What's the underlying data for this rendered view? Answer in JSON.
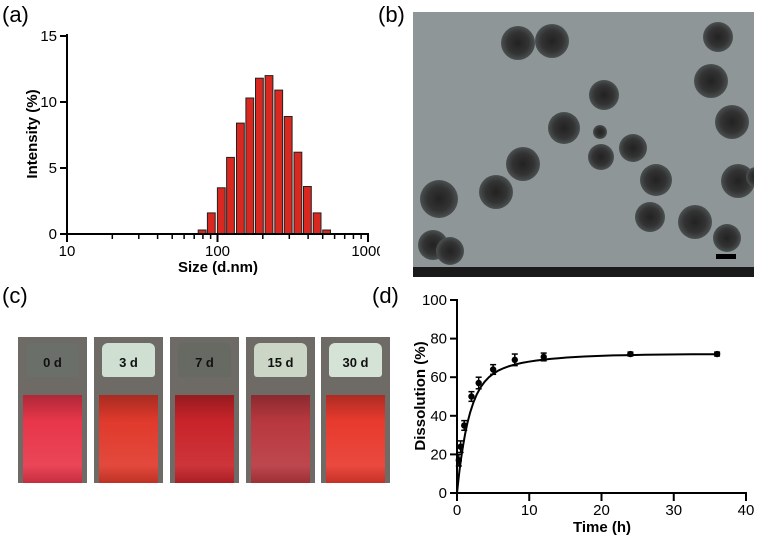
{
  "panel_labels": {
    "a": "(a)",
    "b": "(b)",
    "c": "(c)",
    "d": "(d)"
  },
  "chart_data": [
    {
      "type": "bar",
      "xscale": "log",
      "xlabel": "Size (d.nm)",
      "ylabel": "Intensity (%)",
      "xlim": [
        10,
        1000
      ],
      "ylim": [
        0,
        15
      ],
      "x_ticks": [
        "10",
        "100",
        "1000"
      ],
      "y_ticks": [
        "0",
        "5",
        "10",
        "15"
      ],
      "bar_color": "#d9281f",
      "x": [
        79,
        91,
        106,
        122,
        142,
        164,
        190,
        220,
        255,
        295,
        342,
        396,
        459,
        531
      ],
      "values": [
        0.3,
        1.6,
        3.5,
        5.8,
        8.4,
        10.3,
        11.8,
        12.0,
        10.9,
        8.9,
        6.2,
        3.6,
        1.6,
        0.3
      ]
    },
    {
      "type": "line",
      "xlabel": "Time (h)",
      "ylabel": "Dissolution (%)",
      "xlim": [
        0,
        40
      ],
      "ylim": [
        0,
        100
      ],
      "x_ticks": [
        "0",
        "10",
        "20",
        "30",
        "40"
      ],
      "y_ticks": [
        "0",
        "20",
        "40",
        "60",
        "80",
        "100"
      ],
      "series": [
        {
          "x": [
            0.25,
            0.5,
            1,
            2,
            3,
            5,
            8,
            12,
            24,
            36
          ],
          "y": [
            17,
            24,
            35,
            50,
            57,
            64,
            69,
            70.5,
            72,
            72
          ],
          "err": [
            3,
            3,
            2.5,
            2.5,
            3,
            2.5,
            3,
            2,
            1,
            1
          ]
        }
      ]
    }
  ],
  "vials": [
    {
      "label": "0 d",
      "cap": "#6b6f6a",
      "liquid": "#e8364a"
    },
    {
      "label": "3 d",
      "cap": "#cfe0d2",
      "liquid": "#e03a2c"
    },
    {
      "label": "7 d",
      "cap": "#676a62",
      "liquid": "#c8242a"
    },
    {
      "label": "15 d",
      "cap": "#cbd6c6",
      "liquid": "#b8383f"
    },
    {
      "label": "30 d",
      "cap": "#d4e3d6",
      "liquid": "#e83a2e"
    }
  ]
}
